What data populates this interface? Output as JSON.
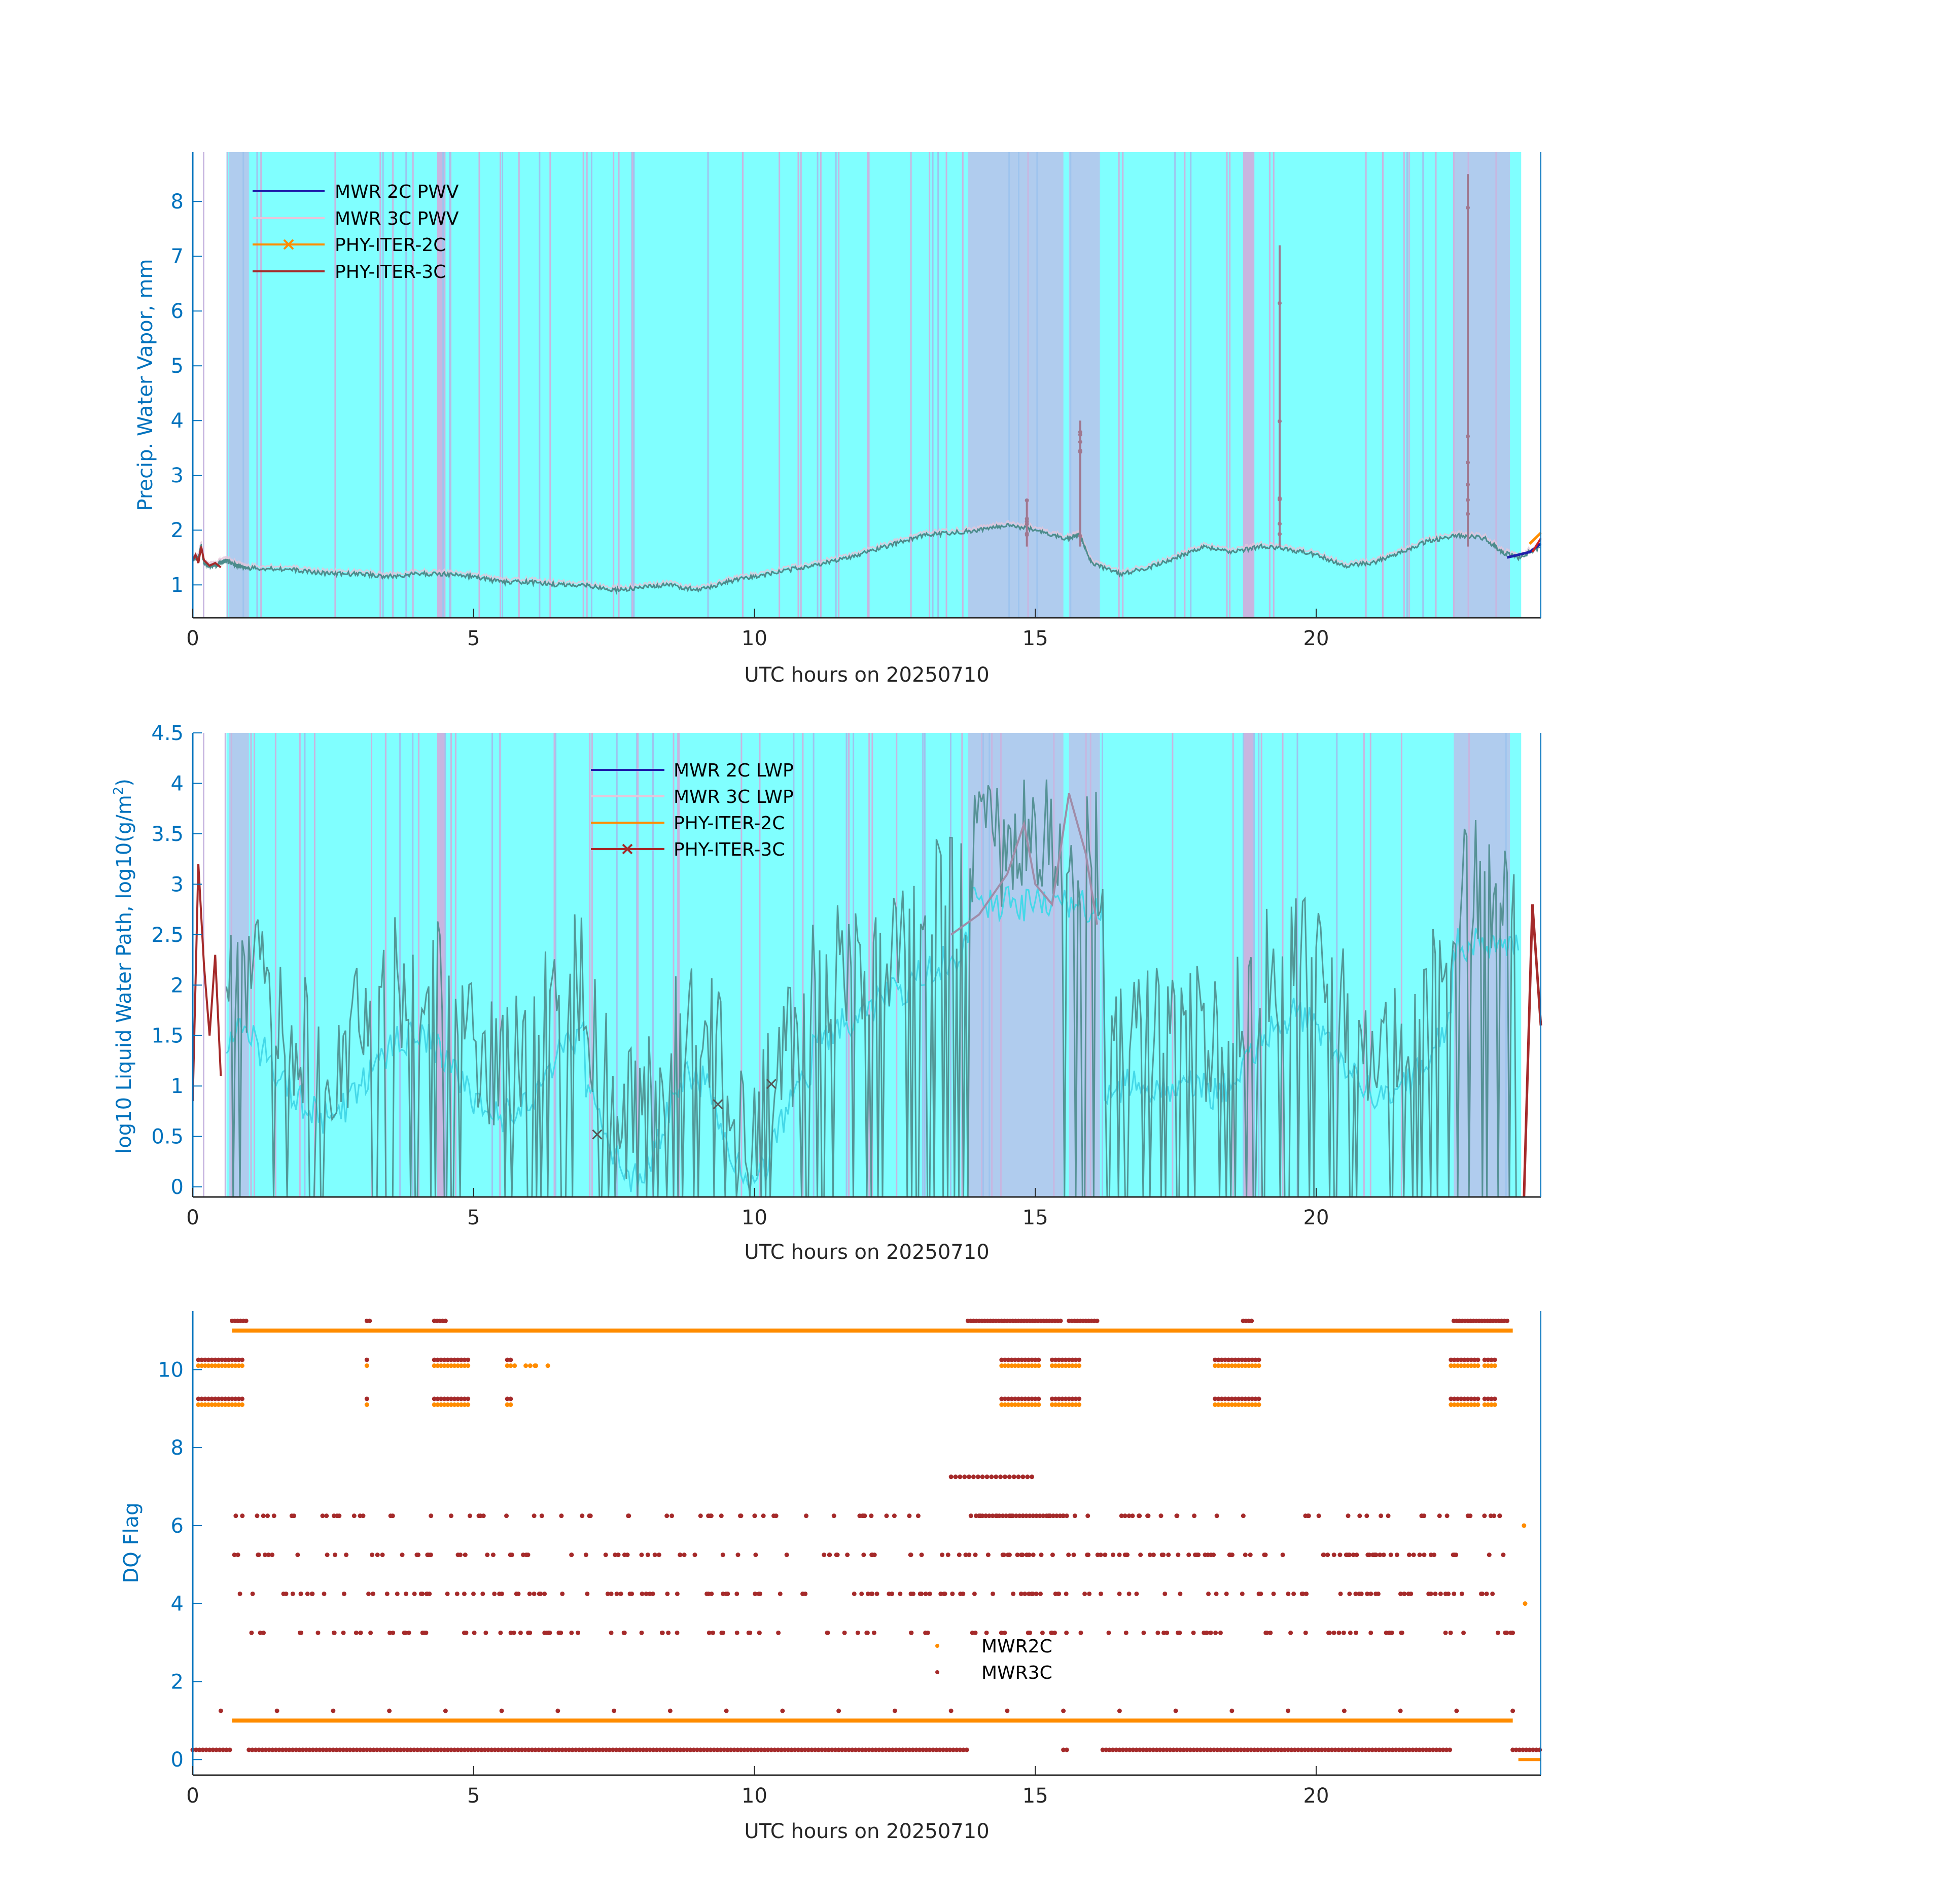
{
  "colors": {
    "bg_cyan": "#80FFFF",
    "bg_blue": "#B0CCEE",
    "bg_pink": "#C8B6E0",
    "axis_blue": "#0072BD",
    "mwr2c_pwv": "#1F1FAA",
    "mwr3c_pwv": "#E6C6DA",
    "phy2c": "#FF8C00",
    "phy3c": "#A52A2A",
    "trace_dark": "#4C8C8C"
  },
  "chart_data": [
    {
      "type": "line",
      "title": "",
      "xlabel": "UTC hours on 20250710",
      "ylabel": "Precip. Water Vapor, mm",
      "xlim": [
        0,
        24
      ],
      "ylim": [
        0.4,
        8.9
      ],
      "xticks": [
        0,
        5,
        10,
        15,
        20
      ],
      "yticks": [
        1,
        2,
        3,
        4,
        5,
        6,
        7,
        8
      ],
      "xtick_labels": [
        "0",
        "5",
        "10",
        "15",
        "20"
      ],
      "ytick_labels": [
        "1",
        "2",
        "3",
        "4",
        "5",
        "6",
        "7",
        "8"
      ],
      "legend": [
        "MWR 2C PWV",
        "MWR 3C PWV",
        "PHY-ITER-2C",
        "PHY-ITER-3C"
      ],
      "legend_position": "top-left",
      "series": [
        {
          "name": "PHY-ITER-3C",
          "x": [
            0,
            0.1,
            0.15,
            0.2,
            0.3,
            0.4,
            0.5,
            0.6,
            0.8,
            1.0,
            1.5,
            2.0,
            2.5,
            3.0,
            3.5,
            4.0,
            4.5,
            5.0,
            5.5,
            6.0,
            6.5,
            7.0,
            7.5,
            8.0,
            8.5,
            9.0,
            9.5,
            10.0,
            10.5,
            11.0,
            11.5,
            12.0,
            12.5,
            13.0,
            13.5,
            14.0,
            14.5,
            15.0,
            15.5,
            15.8,
            16.0,
            16.5,
            17.0,
            17.5,
            18.0,
            18.5,
            19.0,
            19.5,
            20.0,
            20.5,
            21.0,
            21.5,
            22.0,
            22.5,
            23.0,
            23.3,
            23.6,
            24.0
          ],
          "values": [
            1.45,
            1.5,
            1.7,
            1.4,
            1.35,
            1.35,
            1.4,
            1.45,
            1.35,
            1.3,
            1.3,
            1.25,
            1.2,
            1.2,
            1.15,
            1.2,
            1.2,
            1.15,
            1.05,
            1.05,
            1.0,
            1.0,
            0.9,
            0.95,
            1.0,
            0.9,
            1.05,
            1.15,
            1.25,
            1.35,
            1.45,
            1.6,
            1.75,
            1.9,
            1.95,
            2.0,
            2.1,
            2.0,
            1.85,
            1.9,
            1.4,
            1.2,
            1.3,
            1.5,
            1.7,
            1.6,
            1.7,
            1.65,
            1.55,
            1.35,
            1.4,
            1.6,
            1.8,
            1.9,
            1.85,
            1.6,
            1.5,
            1.7
          ]
        },
        {
          "name": "MWR 2C PWV",
          "x": [
            23.4,
            23.6,
            23.8,
            24.0
          ],
          "values": [
            1.5,
            1.55,
            1.6,
            1.75
          ]
        }
      ],
      "spikes": [
        {
          "x": 14.85,
          "peak": 2.55
        },
        {
          "x": 15.8,
          "peak": 4.0
        },
        {
          "x": 19.35,
          "peak": 7.2
        },
        {
          "x": 22.7,
          "peak": 8.5
        }
      ]
    },
    {
      "type": "line",
      "title": "",
      "xlabel": "UTC hours on 20250710",
      "ylabel": "log10 Liquid Water Path, log10(g/m",
      "ylabel_sup": "2",
      "ylabel_end": ")",
      "xlim": [
        0,
        24
      ],
      "ylim": [
        -0.1,
        4.5
      ],
      "xticks": [
        0,
        5,
        10,
        15,
        20
      ],
      "yticks": [
        0,
        0.5,
        1,
        1.5,
        2,
        2.5,
        3,
        3.5,
        4,
        4.5
      ],
      "xtick_labels": [
        "0",
        "5",
        "10",
        "15",
        "20"
      ],
      "ytick_labels": [
        "0",
        "0.5",
        "1",
        "1.5",
        "2",
        "2.5",
        "3",
        "3.5",
        "4",
        "4.5"
      ],
      "legend": [
        "MWR 2C LWP",
        "MWR 3C LWP",
        "PHY-ITER-2C",
        "PHY-ITER-3C"
      ],
      "legend_position": "top-center",
      "series": [
        {
          "name": "PHY-ITER-3C",
          "x": [
            0,
            0.1,
            0.2,
            0.3,
            0.4,
            0.5
          ],
          "values": [
            0.85,
            3.2,
            2.2,
            1.5,
            2.3,
            1.1
          ]
        },
        {
          "name": "MWR 3C LWP",
          "x": [
            13.5,
            14.0,
            14.5,
            14.8,
            15.0,
            15.3,
            15.6,
            15.9,
            16.1
          ],
          "values": [
            2.5,
            2.7,
            3.1,
            3.6,
            3.0,
            2.8,
            3.9,
            3.3,
            2.6
          ]
        }
      ],
      "markers": [
        {
          "x": 7.2,
          "y": 0.52
        },
        {
          "x": 9.35,
          "y": 0.82
        },
        {
          "x": 10.3,
          "y": 1.02
        }
      ]
    },
    {
      "type": "scatter",
      "title": "",
      "xlabel": "UTC hours on 20250710",
      "ylabel": "DQ Flag",
      "xlim": [
        0,
        24
      ],
      "ylim": [
        -0.4,
        11.5
      ],
      "xticks": [
        0,
        5,
        10,
        15,
        20
      ],
      "yticks": [
        0,
        2,
        4,
        6,
        8,
        10
      ],
      "xtick_labels": [
        "0",
        "5",
        "10",
        "15",
        "20"
      ],
      "ytick_labels": [
        "0",
        "2",
        "4",
        "6",
        "8",
        "10"
      ],
      "legend": [
        "MWR2C",
        "MWR3C"
      ],
      "legend_position": "bottom-center",
      "series": [
        {
          "name": "MWR2C",
          "flag_levels": [
            1,
            11
          ],
          "x_range": [
            0.7,
            23.5
          ]
        },
        {
          "name": "MWR3C",
          "flag_levels": [
            0,
            3,
            4,
            5,
            6,
            7,
            9,
            10,
            11
          ]
        }
      ]
    }
  ],
  "shading": {
    "blue_spans": [
      [
        0.65,
        1.0
      ],
      [
        13.8,
        15.5
      ],
      [
        15.6,
        16.15
      ],
      [
        22.45,
        23.45
      ]
    ],
    "pink_spans": [
      [
        4.35,
        4.5
      ],
      [
        18.7,
        18.9
      ]
    ]
  }
}
